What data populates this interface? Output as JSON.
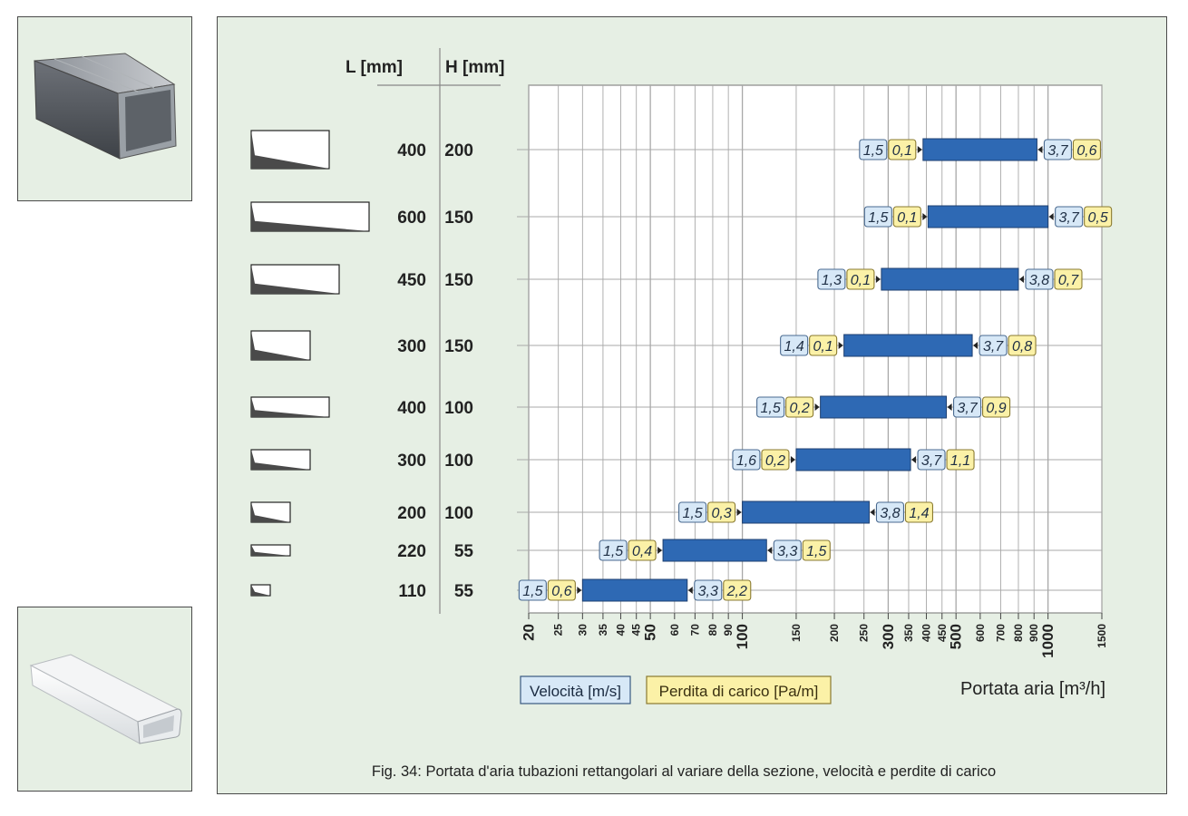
{
  "table_headers": {
    "l": "L [mm]",
    "h": "H [mm]"
  },
  "legend": {
    "velocity": "Velocità [m/s]",
    "pressure": "Perdita di carico [Pa/m]"
  },
  "colors": {
    "bar": "#2e69b4",
    "velocity_box": "#d7e8f7",
    "pressure_box": "#fbf1a7",
    "grid": "#a8a8a8"
  },
  "caption": "Fig. 34: Portata d'aria tubazioni rettangolari al variare della sezione, velocità e perdite di carico",
  "chart_data": {
    "type": "bar",
    "subtype": "horizontal-range",
    "x_scale": "log",
    "xlim": [
      20,
      1500
    ],
    "xlabel": "Portata aria [m³/h]",
    "x_ticks": [
      {
        "v": 20,
        "label": "20",
        "major": true
      },
      {
        "v": 25,
        "label": "25"
      },
      {
        "v": 30,
        "label": "30"
      },
      {
        "v": 35,
        "label": "35"
      },
      {
        "v": 40,
        "label": "40"
      },
      {
        "v": 45,
        "label": "45"
      },
      {
        "v": 50,
        "label": "50",
        "major": true
      },
      {
        "v": 60,
        "label": "60"
      },
      {
        "v": 70,
        "label": "70"
      },
      {
        "v": 80,
        "label": "80"
      },
      {
        "v": 90,
        "label": "90"
      },
      {
        "v": 100,
        "label": "100",
        "major": true
      },
      {
        "v": 150,
        "label": "150"
      },
      {
        "v": 200,
        "label": "200"
      },
      {
        "v": 250,
        "label": "250"
      },
      {
        "v": 300,
        "label": "300",
        "major": true
      },
      {
        "v": 350,
        "label": "350"
      },
      {
        "v": 400,
        "label": "400"
      },
      {
        "v": 450,
        "label": "450"
      },
      {
        "v": 500,
        "label": "500",
        "major": true
      },
      {
        "v": 600,
        "label": "600"
      },
      {
        "v": 700,
        "label": "700"
      },
      {
        "v": 800,
        "label": "800"
      },
      {
        "v": 900,
        "label": "900"
      },
      {
        "v": 1000,
        "label": "1000",
        "major": true
      },
      {
        "v": 1500,
        "label": "1500"
      }
    ],
    "rows": [
      {
        "l": "400",
        "h": "200",
        "min": 390,
        "max": 920,
        "v_min": "1,5",
        "p_min": "0,1",
        "v_max": "3,7",
        "p_max": "0,6"
      },
      {
        "l": "600",
        "h": "150",
        "min": 405,
        "max": 1000,
        "v_min": "1,5",
        "p_min": "0,1",
        "v_max": "3,7",
        "p_max": "0,5"
      },
      {
        "l": "450",
        "h": "150",
        "min": 285,
        "max": 800,
        "v_min": "1,3",
        "p_min": "0,1",
        "v_max": "3,8",
        "p_max": "0,7"
      },
      {
        "l": "300",
        "h": "150",
        "min": 215,
        "max": 565,
        "v_min": "1,4",
        "p_min": "0,1",
        "v_max": "3,7",
        "p_max": "0,8"
      },
      {
        "l": "400",
        "h": "100",
        "min": 180,
        "max": 465,
        "v_min": "1,5",
        "p_min": "0,2",
        "v_max": "3,7",
        "p_max": "0,9"
      },
      {
        "l": "300",
        "h": "100",
        "min": 150,
        "max": 355,
        "v_min": "1,6",
        "p_min": "0,2",
        "v_max": "3,7",
        "p_max": "1,1"
      },
      {
        "l": "200",
        "h": "100",
        "min": 100,
        "max": 260,
        "v_min": "1,5",
        "p_min": "0,3",
        "v_max": "3,8",
        "p_max": "1,4"
      },
      {
        "l": "220",
        "h": "55",
        "min": 55,
        "max": 120,
        "v_min": "1,5",
        "p_min": "0,4",
        "v_max": "3,3",
        "p_max": "1,5"
      },
      {
        "l": "110",
        "h": "55",
        "min": 30,
        "max": 66,
        "v_min": "1,5",
        "p_min": "0,6",
        "v_max": "3,3",
        "p_max": "2,2"
      }
    ]
  }
}
